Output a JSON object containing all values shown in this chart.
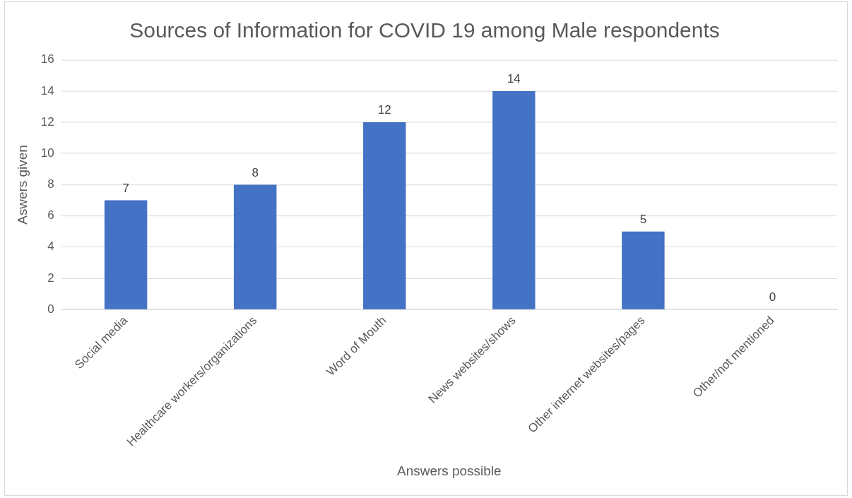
{
  "chart_data": {
    "type": "bar",
    "title": "Sources of Information for COVID 19 among Male respondents",
    "xlabel": "Answers possible",
    "ylabel": "Aswers given",
    "categories": [
      "Social media",
      "Healthcare workers/organizations",
      "Word of Mouth",
      "News websites/shows",
      "Other internet websites/pages",
      "Other/not mentioned"
    ],
    "values": [
      7,
      8,
      12,
      14,
      5,
      0
    ],
    "color": "#4472c4",
    "ylim": [
      0,
      16
    ],
    "yticks": [
      0,
      2,
      4,
      6,
      8,
      10,
      12,
      14,
      16
    ],
    "grid": "y",
    "data_labels": true
  }
}
